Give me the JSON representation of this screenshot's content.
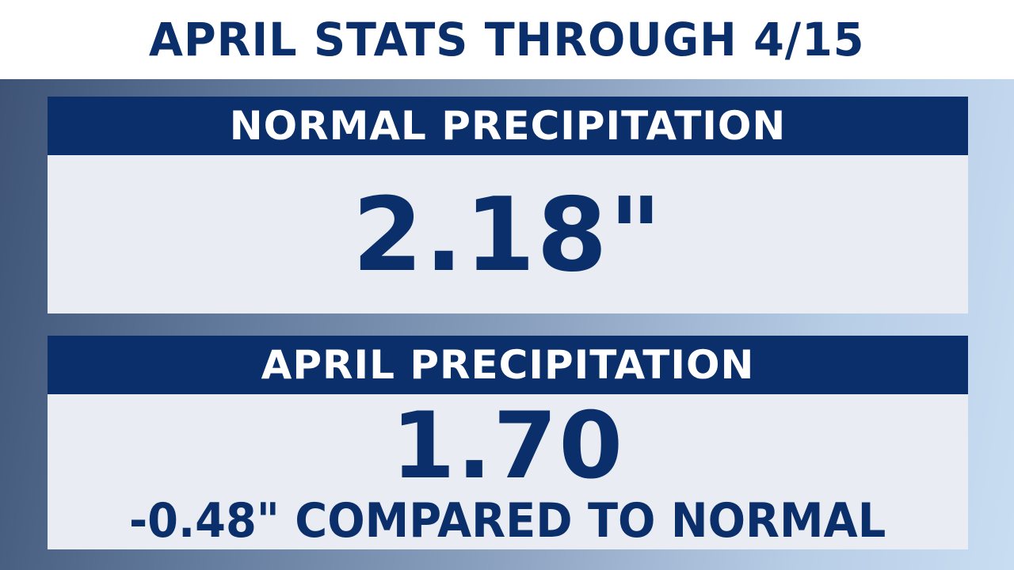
{
  "title": "APRIL STATS THROUGH 4/15",
  "normal_panel": {
    "header": "NORMAL PRECIPITATION",
    "value": "2.18\""
  },
  "april_panel": {
    "header": "APRIL PRECIPITATION",
    "value": "1.70",
    "comparison": "-0.48\" COMPARED TO NORMAL"
  },
  "colors": {
    "navy": "#0b2f6b",
    "panel_body": "#e9ecf2",
    "title_bg": "#ffffff"
  }
}
